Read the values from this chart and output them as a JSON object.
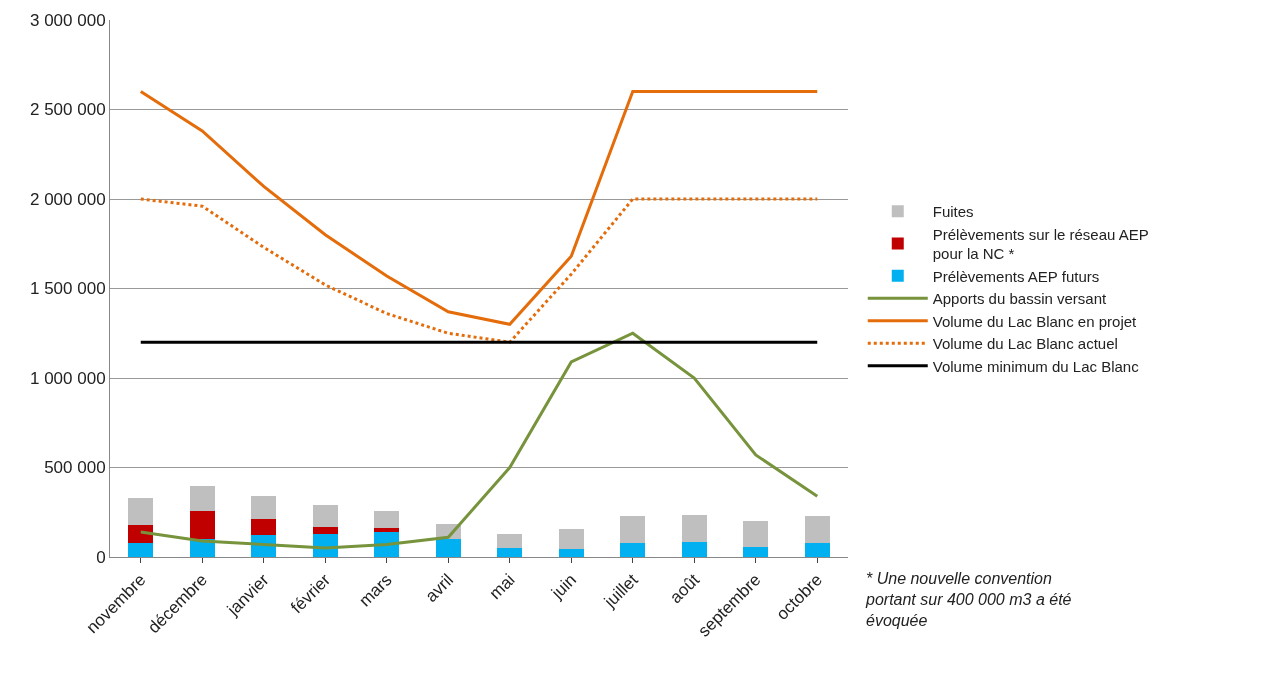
{
  "chart_data": {
    "type": "bar",
    "stacked": true,
    "categories": [
      "novembre",
      "décembre",
      "janvier",
      "février",
      "mars",
      "avril",
      "mai",
      "juin",
      "juillet",
      "août",
      "septembre",
      "octobre"
    ],
    "series": [
      {
        "name": "Prélèvements AEP futurs",
        "color": "#00b0f0",
        "values": [
          78000,
          98000,
          122000,
          129000,
          137000,
          102000,
          49000,
          43000,
          78000,
          86000,
          57000,
          78000
        ]
      },
      {
        "name": "Prélèvements sur le réseau AEP pour la NC *",
        "color": "#c00000",
        "values": [
          102000,
          157000,
          90000,
          36000,
          24000,
          null,
          null,
          null,
          null,
          null,
          null,
          null
        ]
      },
      {
        "name": "Fuites",
        "color": "#bfbfbf",
        "values": [
          149000,
          141000,
          127000,
          123000,
          98000,
          84000,
          80000,
          114000,
          151000,
          151000,
          145000,
          151000
        ]
      },
      {
        "name": "Apports du bassin versant",
        "type": "line",
        "color": "#77933c",
        "line_style": "solid",
        "values": [
          140000,
          90000,
          70000,
          50000,
          70000,
          110000,
          500000,
          1090000,
          1250000,
          1000000,
          570000,
          340000
        ]
      },
      {
        "name": "Volume du Lac Blanc en projet",
        "type": "line",
        "color": "#e46c0a",
        "line_style": "solid",
        "values": [
          2600000,
          2380000,
          2070000,
          1800000,
          1570000,
          1370000,
          1300000,
          1680000,
          2600000,
          2600000,
          2600000,
          2600000
        ]
      },
      {
        "name": "Volume du Lac Blanc actuel",
        "type": "line",
        "color": "#e46c0a",
        "line_style": "dotted",
        "values": [
          2000000,
          1960000,
          1730000,
          1520000,
          1360000,
          1250000,
          1200000,
          1580000,
          2000000,
          2000000,
          2000000,
          2000000
        ]
      },
      {
        "name": "Volume minimum du Lac Blanc",
        "type": "line",
        "color": "#000000",
        "line_style": "solid",
        "values": [
          1200000,
          1200000,
          1200000,
          1200000,
          1200000,
          1200000,
          1200000,
          1200000,
          1200000,
          1200000,
          1200000,
          1200000
        ]
      }
    ],
    "ylim": [
      0,
      3000000
    ],
    "yticks": [
      {
        "value": 0,
        "label": "0"
      },
      {
        "value": 500000,
        "label": "500 000"
      },
      {
        "value": 1000000,
        "label": "1 000 000"
      },
      {
        "value": 1500000,
        "label": "1 500 000"
      },
      {
        "value": 2000000,
        "label": "2 000 000"
      },
      {
        "value": 2500000,
        "label": "2 500 000"
      },
      {
        "value": 3000000,
        "label": "3 000 000"
      }
    ],
    "grid": "y",
    "legend": "right",
    "marker": "none",
    "annotations": [
      "* Une nouvelle convention portant sur 400 000 m3 a été évoquée"
    ]
  }
}
